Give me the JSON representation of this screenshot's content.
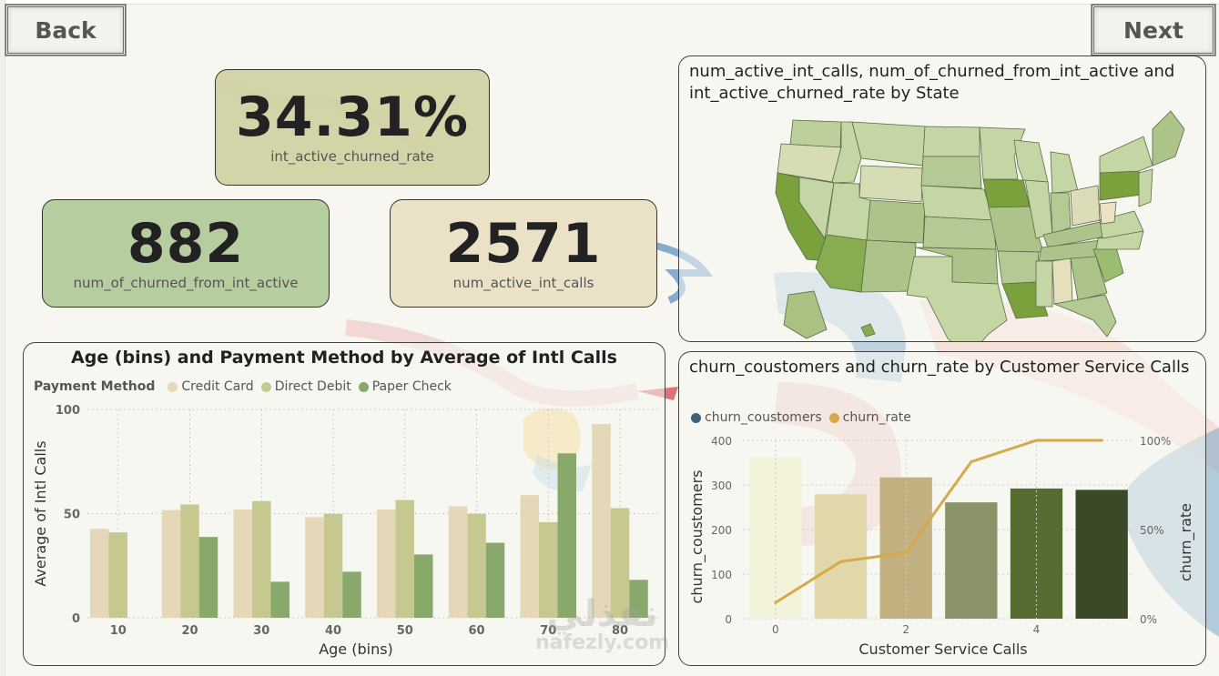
{
  "nav": {
    "back_label": "Back",
    "next_label": "Next"
  },
  "kpis": {
    "rate": {
      "value": "34.31%",
      "label": "int_active_churned_rate",
      "color": "#d2d2a4"
    },
    "churned": {
      "value": "882",
      "label": "num_of_churned_from_int_active",
      "color": "#b6cda0"
    },
    "active": {
      "value": "2571",
      "label": "num_active_int_calls",
      "color": "#ebe1c7"
    }
  },
  "map": {
    "title": "num_active_int_calls, num_of_churned_from_int_active and int_active_churned_rate by State",
    "color_low": "#e6dfbc",
    "color_high": "#7aa13c",
    "highlighted_states": [
      "California",
      "Arizona",
      "Iowa",
      "Pennsylvania",
      "Louisiana"
    ],
    "light_states": [
      "Alabama",
      "West Virginia",
      "Ohio",
      "Oregon",
      "Wyoming"
    ]
  },
  "watermark": {
    "arabic": "نفذلي",
    "latin": "nafezly.com"
  },
  "chart_data": [
    {
      "type": "bar",
      "title": "Age (bins) and Payment Method by Average of Intl Calls",
      "xlabel": "Age (bins)",
      "ylabel": "Average of Intl Calls",
      "ylim": [
        0,
        100
      ],
      "yticks": [
        0,
        50,
        100
      ],
      "legend_title": "Payment Method",
      "legend_position": "top-left",
      "grid": true,
      "categories": [
        "10",
        "20",
        "30",
        "40",
        "50",
        "60",
        "70",
        "80"
      ],
      "series": [
        {
          "name": "Credit Card",
          "color": "#e4d8b8",
          "values": [
            42.7,
            51.7,
            52.0,
            48.3,
            52.0,
            53.5,
            58.9,
            93.0
          ]
        },
        {
          "name": "Direct Debit",
          "color": "#c6c88f",
          "values": [
            41.0,
            54.4,
            56.0,
            49.9,
            56.5,
            49.9,
            45.9,
            52.6
          ]
        },
        {
          "name": "Paper Check",
          "color": "#88a86c",
          "values": [
            null,
            38.8,
            17.3,
            22.1,
            30.4,
            36.0,
            78.9,
            18.2
          ]
        }
      ]
    },
    {
      "type": "bar+line",
      "title": "churn_coustomers and churn_rate by Customer Service Calls",
      "xlabel": "Customer Service Calls",
      "ylabel": "churn_coustomers",
      "y2label": "churn_rate",
      "ylim": [
        0,
        400
      ],
      "yticks": [
        0,
        100,
        200,
        300,
        400
      ],
      "y2lim": [
        0,
        100
      ],
      "y2ticks": [
        "0%",
        "50%",
        "100%"
      ],
      "xticks": [
        "0",
        "2",
        "4"
      ],
      "legend_position": "top-left",
      "grid": true,
      "x": [
        0,
        1,
        2,
        3,
        4,
        5
      ],
      "series": [
        {
          "name": "churn_coustomers",
          "type": "bar",
          "legend_color": "#3e6478",
          "colors": [
            "#f3f3dc",
            "#e0d8a8",
            "#c3b080",
            "#8a9468",
            "#566c30",
            "#3a4a28"
          ],
          "values": [
            361,
            279,
            317,
            261,
            292,
            289
          ]
        },
        {
          "name": "churn_rate",
          "type": "line",
          "color": "#d4aa4a",
          "unit": "%",
          "values": [
            9,
            32,
            37,
            88,
            100,
            100
          ]
        }
      ]
    }
  ]
}
